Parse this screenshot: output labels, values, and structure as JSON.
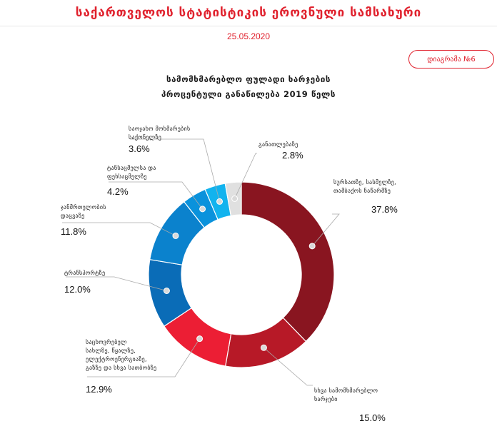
{
  "header": {
    "title": "საქართველოს სტატისტიკის ეროვნული სამსახური",
    "date": "25.05.2020"
  },
  "diagram_button": "დიაგრამა №6",
  "chart_data": {
    "type": "pie",
    "donut": true,
    "title_lines": [
      "სამომხმარებლო ფულადი ხარჯების",
      "პროცენტული განაწილება 2019 წელს"
    ],
    "slices": [
      {
        "label_lines": [
          "სურსათზე, სასმელზე,",
          "თამბაქოს ნაწარმზე"
        ],
        "value": 37.8,
        "value_text": "37.8%",
        "color": "#891520"
      },
      {
        "label_lines": [
          "სხვა სამომხმარებლო",
          "ხარჯები"
        ],
        "value": 15.0,
        "value_text": "15.0%",
        "color": "#b71927"
      },
      {
        "label_lines": [
          "საცხოვრებელ",
          "სახლზე, წყალზე,",
          "ელექტროენერგიაზე,",
          "გაზზე და სხვა სათბობზე"
        ],
        "value": 12.9,
        "value_text": "12.9%",
        "color": "#ec1e34"
      },
      {
        "label_lines": [
          "ტრანსპორტზე"
        ],
        "value": 12.0,
        "value_text": "12.0%",
        "color": "#0a6cb7"
      },
      {
        "label_lines": [
          "ჯანმრთელობის",
          "დაცვაზე"
        ],
        "value": 11.8,
        "value_text": "11.8%",
        "color": "#0b82cd"
      },
      {
        "label_lines": [
          "ტანსაცმელსა და",
          "ფეხსაცმელზე"
        ],
        "value": 4.2,
        "value_text": "4.2%",
        "color": "#0a92dc"
      },
      {
        "label_lines": [
          "საოჯახო მოხმარების",
          "საქონელზე"
        ],
        "value": 3.6,
        "value_text": "3.6%",
        "color": "#12b3ee"
      },
      {
        "label_lines": [
          "განათლებაზე"
        ],
        "value": 2.8,
        "value_text": "2.8%",
        "color": "#e0e0e0"
      }
    ]
  }
}
